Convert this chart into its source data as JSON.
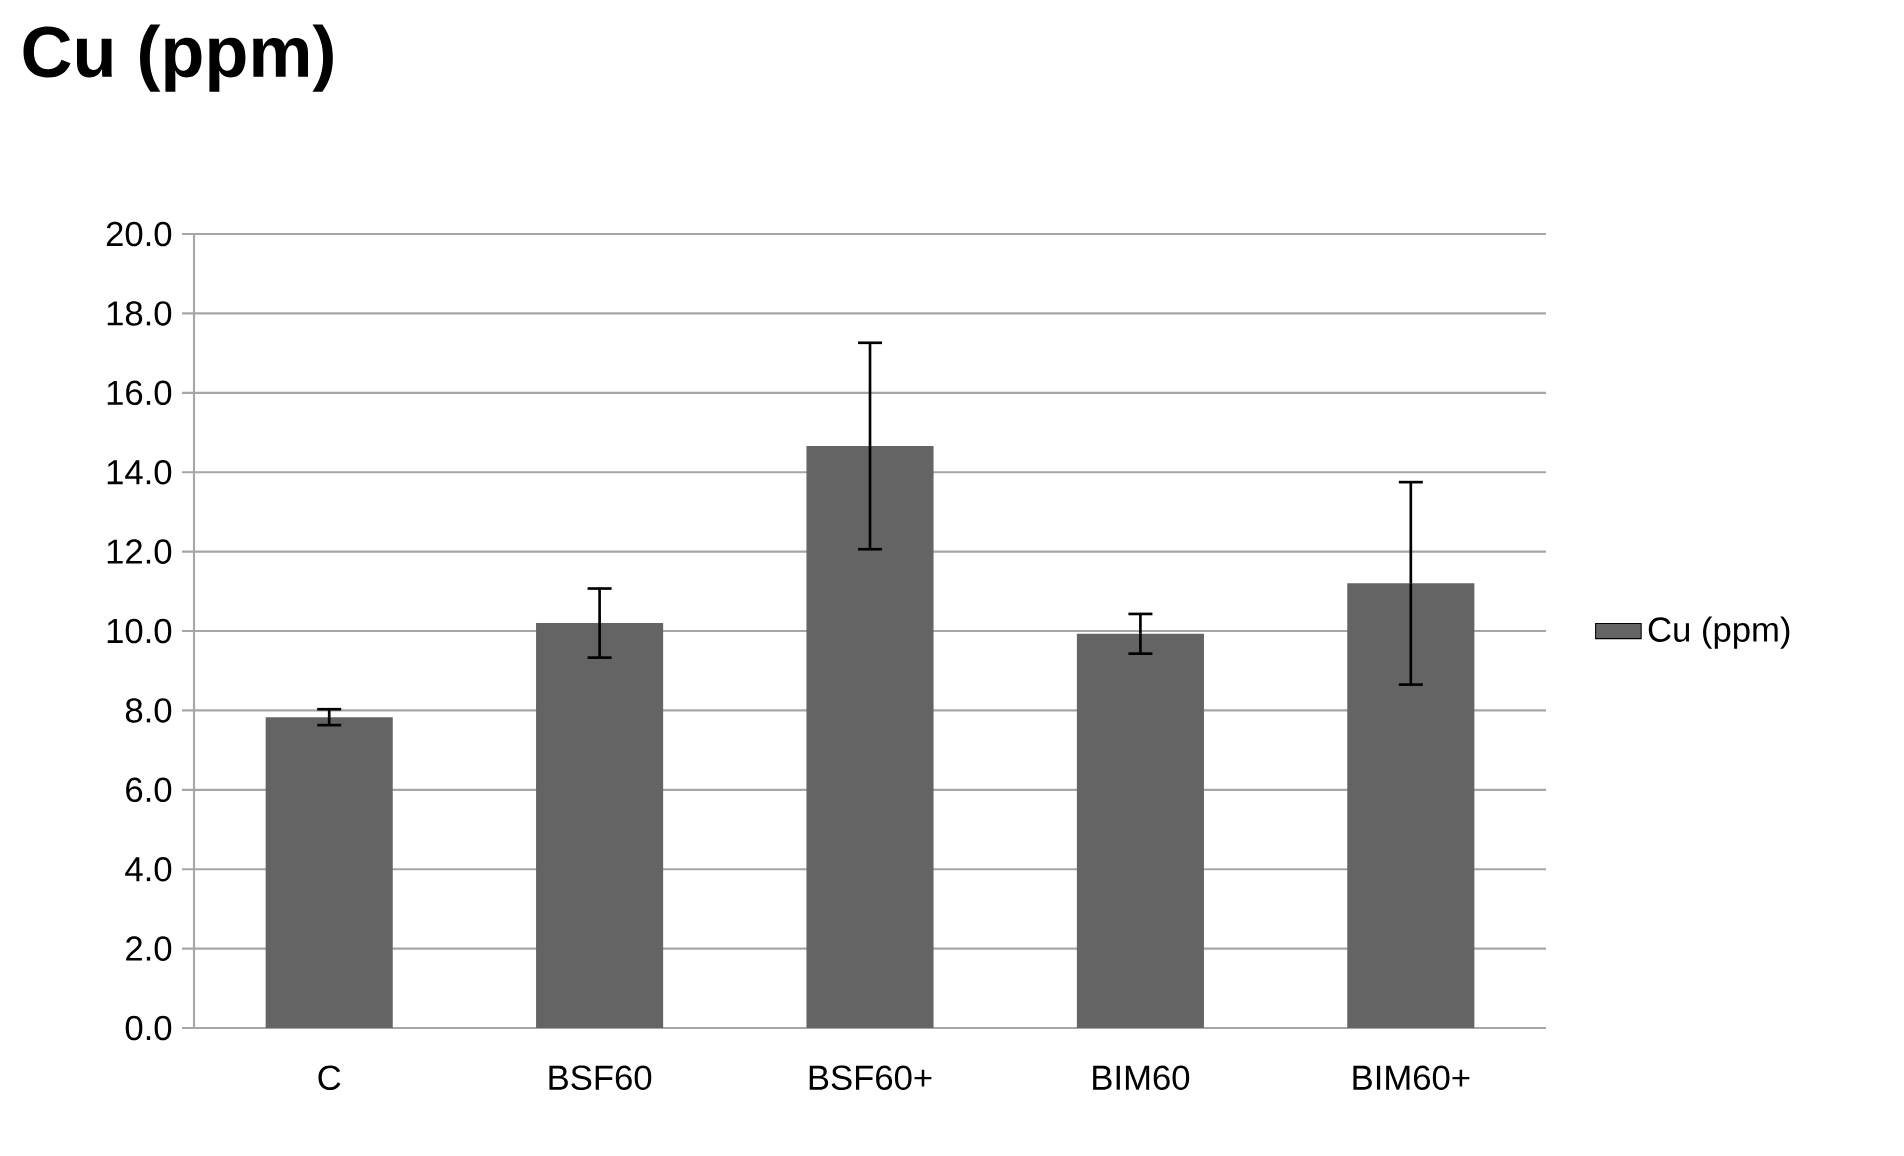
{
  "chart_data": {
    "type": "bar",
    "title": "Cu (ppm)",
    "categories": [
      "C",
      "BSF60",
      "BSF60+",
      "BIM60",
      "BIM60+"
    ],
    "series": [
      {
        "name": "Cu (ppm)",
        "color": "#646464",
        "values": [
          7.83,
          10.2,
          14.66,
          9.93,
          11.2
        ],
        "errors": [
          0.2,
          0.87,
          2.6,
          0.5,
          2.55
        ]
      }
    ],
    "ylim": [
      0,
      20
    ],
    "yticks": [
      {
        "value": 0,
        "label": "0.0"
      },
      {
        "value": 2,
        "label": "2.0"
      },
      {
        "value": 4,
        "label": "4.0"
      },
      {
        "value": 6,
        "label": "6.0"
      },
      {
        "value": 8,
        "label": "8.0"
      },
      {
        "value": 10,
        "label": "10.0"
      },
      {
        "value": 12,
        "label": "12.0"
      },
      {
        "value": 14,
        "label": "14.0"
      },
      {
        "value": 16,
        "label": "16.0"
      },
      {
        "value": 18,
        "label": "18.0"
      },
      {
        "value": 20,
        "label": "20.0"
      }
    ],
    "grid": "y",
    "legend": "right"
  }
}
